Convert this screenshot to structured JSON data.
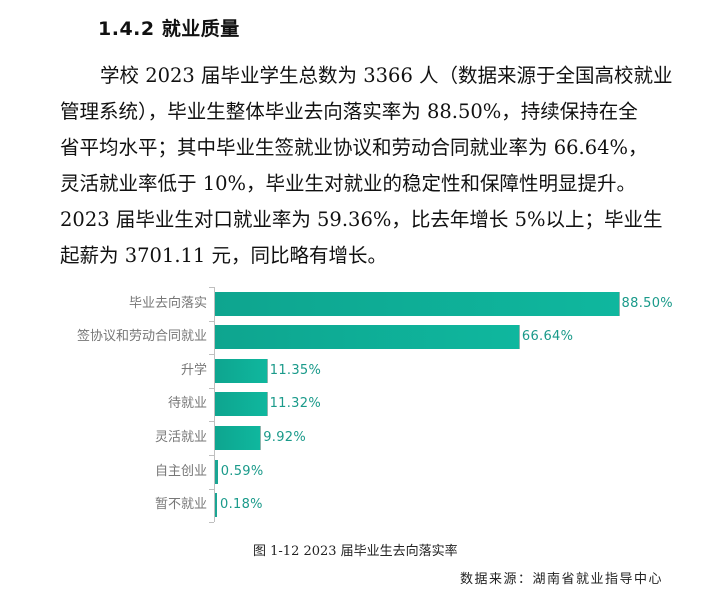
{
  "heading": "1.4.2  就业质量",
  "paragraph": {
    "lines": [
      "学校 2023 届毕业学生总数为 3366 人（数据来源于全国高校就业",
      "管理系统），毕业生整体毕业去向落实率为  88.50%，持续保持在全",
      "省平均水平；其中毕业生签就业协议和劳动合同就业率为  66.64%，",
      "灵活就业率低于  10%，毕业生对就业的稳定性和保障性明显提升。",
      "2023  届毕业生对口就业率为  59.36%，比去年增长  5%以上；毕业生",
      "起薪为 3701.11 元，同比略有增长。"
    ]
  },
  "chart_data": {
    "type": "bar",
    "orientation": "horizontal",
    "title": "图 1-12  2023 届毕业生去向落实率",
    "xlabel": "",
    "ylabel": "",
    "categories": [
      "毕业去向落实",
      "签协议和劳动合同就业",
      "升学",
      "待就业",
      "灵活就业",
      "自主创业",
      "暂不就业"
    ],
    "values": [
      88.5,
      66.64,
      11.35,
      11.32,
      9.92,
      0.59,
      0.18
    ],
    "labels": [
      "88.50%",
      "66.64%",
      "11.35%",
      "11.32%",
      "9.92%",
      "0.59%",
      "0.18%"
    ],
    "unit": "%",
    "xlim": [
      0,
      100
    ],
    "grid": false,
    "legend": false,
    "bar_color": "#0fb09a",
    "label_color": "#1a9a8a",
    "category_color": "#777777"
  },
  "caption": "图 1-12  2023 届毕业生去向落实率",
  "source": "数据来源：湖南省就业指导中心"
}
